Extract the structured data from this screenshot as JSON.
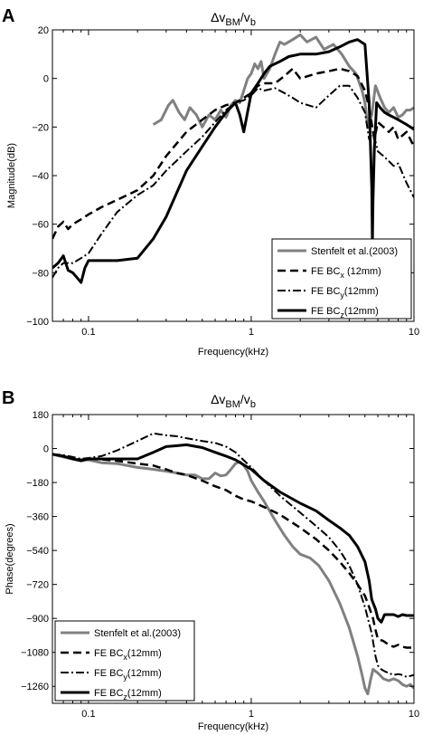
{
  "chart_data": [
    {
      "panel": "A",
      "type": "line",
      "title": "Δv_BM/v_b",
      "title_main": "Δv",
      "title_sub1": "BM",
      "title_slash": "/v",
      "title_sub2": "b",
      "xlabel": "Frequency(kHz)",
      "ylabel": "Magnitude(dB)",
      "xscale": "log",
      "xlim": [
        0.06,
        10
      ],
      "ylim": [
        -100,
        20
      ],
      "xticks": [
        0.1,
        1,
        10
      ],
      "xtick_labels": [
        "0.1",
        "1",
        "10"
      ],
      "yticks": [
        -100,
        -80,
        -60,
        -40,
        -20,
        0,
        20
      ],
      "ytick_labels": [
        "−100",
        "−80",
        "−60",
        "−40",
        "−20",
        "0",
        "20"
      ],
      "grid": false,
      "legend_position": "lower-right",
      "series": [
        {
          "name": "Stenfelt et al.(2003)",
          "style": "solid",
          "color": "#808080",
          "width": 3,
          "x": [
            0.25,
            0.28,
            0.31,
            0.33,
            0.36,
            0.39,
            0.42,
            0.46,
            0.5,
            0.55,
            0.6,
            0.65,
            0.7,
            0.75,
            0.8,
            0.85,
            0.9,
            0.95,
            1.0,
            1.05,
            1.1,
            1.15,
            1.2,
            1.3,
            1.4,
            1.5,
            1.6,
            1.8,
            2.0,
            2.2,
            2.5,
            2.8,
            3.2,
            3.6,
            4.0,
            4.4,
            4.8,
            5.0,
            5.2,
            5.5,
            5.8,
            6.2,
            6.6,
            7.0,
            7.5,
            8.0,
            8.5,
            9.0,
            9.5,
            10.0
          ],
          "y": [
            -19,
            -17,
            -11,
            -9,
            -14,
            -17,
            -12,
            -15,
            -20,
            -15,
            -17,
            -13,
            -16,
            -11,
            -9,
            -10,
            -5,
            0,
            2,
            6,
            4,
            7,
            0,
            4,
            10,
            15,
            14,
            16,
            18,
            15,
            17,
            12,
            14,
            10,
            5,
            2,
            -5,
            -10,
            -20,
            -15,
            -3,
            -8,
            -12,
            -14,
            -12,
            -16,
            -15,
            -13,
            -13,
            -12
          ]
        },
        {
          "name": "FE BC_x (12mm)",
          "label_prefix": "FE BC",
          "label_sub": "x",
          "label_suffix": " (12mm)",
          "style": "dashed",
          "color": "#000000",
          "width": 2.5,
          "x": [
            0.06,
            0.065,
            0.07,
            0.075,
            0.08,
            0.09,
            0.1,
            0.12,
            0.15,
            0.2,
            0.25,
            0.3,
            0.4,
            0.5,
            0.6,
            0.7,
            0.8,
            0.9,
            1.0,
            1.1,
            1.2,
            1.4,
            1.6,
            1.8,
            2.0,
            2.5,
            3.0,
            3.5,
            4.0,
            4.5,
            5.0,
            5.3,
            5.7,
            6.0,
            6.5,
            7.0,
            7.5,
            8.0,
            9.0,
            10.0
          ],
          "y": [
            -66,
            -61,
            -59,
            -62,
            -60,
            -58,
            -56,
            -53,
            -50,
            -46,
            -40,
            -32,
            -22,
            -17,
            -13,
            -11,
            -10,
            -8,
            -6,
            -3,
            -2,
            -2,
            1,
            4,
            0,
            2,
            3,
            4,
            3,
            1,
            -5,
            -12,
            -25,
            -18,
            -20,
            -22,
            -20,
            -25,
            -22,
            -28
          ]
        },
        {
          "name": "FE BC_y(12mm)",
          "label_prefix": "FE BC",
          "label_sub": "y",
          "label_suffix": "(12mm)",
          "style": "dashdot",
          "color": "#000000",
          "width": 2,
          "x": [
            0.06,
            0.065,
            0.07,
            0.08,
            0.09,
            0.1,
            0.12,
            0.15,
            0.2,
            0.25,
            0.3,
            0.4,
            0.5,
            0.6,
            0.7,
            0.8,
            0.9,
            1.0,
            1.1,
            1.2,
            1.4,
            1.6,
            1.8,
            2.0,
            2.5,
            3.0,
            3.5,
            4.0,
            4.5,
            5.0,
            5.3,
            5.6,
            6.0,
            6.5,
            7.0,
            7.5,
            8.0,
            9.0,
            10.0
          ],
          "y": [
            -82,
            -78,
            -76,
            -76,
            -74,
            -72,
            -64,
            -55,
            -48,
            -44,
            -38,
            -30,
            -24,
            -18,
            -13,
            -10,
            -9,
            -7,
            -4,
            -5,
            -4,
            -6,
            -8,
            -10,
            -12,
            -7,
            -3,
            -3,
            -8,
            -14,
            -25,
            -22,
            -30,
            -32,
            -34,
            -36,
            -35,
            -43,
            -49
          ]
        },
        {
          "name": "FE BC_z(12mm)",
          "label_prefix": "FE BC",
          "label_sub": "z",
          "label_suffix": "(12mm)",
          "style": "solid",
          "color": "#000000",
          "width": 3,
          "x": [
            0.06,
            0.065,
            0.07,
            0.075,
            0.08,
            0.085,
            0.09,
            0.095,
            0.1,
            0.12,
            0.15,
            0.2,
            0.25,
            0.3,
            0.4,
            0.5,
            0.6,
            0.7,
            0.8,
            0.85,
            0.9,
            1.0,
            1.1,
            1.2,
            1.3,
            1.5,
            1.7,
            2.0,
            2.5,
            3.0,
            3.5,
            4.0,
            4.5,
            5.0,
            5.3,
            5.5,
            5.55,
            5.6,
            5.7,
            5.9,
            6.2,
            6.6,
            7.0,
            7.5,
            8.0,
            8.5,
            9.0,
            9.5,
            10.0
          ],
          "y": [
            -78,
            -76,
            -73,
            -79,
            -80,
            -82,
            -84,
            -78,
            -75,
            -75,
            -75,
            -74,
            -66,
            -57,
            -38,
            -28,
            -20,
            -14,
            -10,
            -15,
            -22,
            -6,
            -2,
            2,
            5,
            7,
            9,
            10,
            10,
            11,
            13,
            15,
            16,
            14,
            -10,
            -45,
            -68,
            -50,
            -30,
            -10,
            -12,
            -14,
            -15,
            -16,
            -17,
            -18,
            -19,
            -20,
            -21
          ]
        }
      ]
    },
    {
      "panel": "B",
      "type": "line",
      "title": "Δv_BM/v_b",
      "title_main": "Δv",
      "title_sub1": "BM",
      "title_slash": "/v",
      "title_sub2": "b",
      "xlabel": "Frequency(kHz)",
      "ylabel": "Phase(degrees)",
      "xscale": "log",
      "xlim": [
        0.06,
        10
      ],
      "ylim": [
        -1350,
        180
      ],
      "xticks": [
        0.1,
        1,
        10
      ],
      "xtick_labels": [
        "0.1",
        "1",
        "10"
      ],
      "yticks": [
        180,
        0,
        -180,
        -360,
        -540,
        -720,
        -900,
        -1080,
        -1260
      ],
      "ytick_labels": [
        "180",
        "0",
        "−180",
        "−360",
        "−540",
        "−720",
        "−900",
        "−1080",
        "−1260"
      ],
      "grid": false,
      "legend_position": "lower-left",
      "series": [
        {
          "name": "Stenfelt et al.(2003)",
          "style": "solid",
          "color": "#808080",
          "width": 3,
          "x": [
            0.06,
            0.07,
            0.08,
            0.09,
            0.1,
            0.12,
            0.15,
            0.2,
            0.25,
            0.3,
            0.35,
            0.4,
            0.45,
            0.5,
            0.55,
            0.6,
            0.65,
            0.7,
            0.75,
            0.8,
            0.85,
            0.9,
            0.95,
            1.0,
            1.1,
            1.2,
            1.4,
            1.6,
            1.8,
            2.0,
            2.3,
            2.6,
            3.0,
            3.5,
            4.0,
            4.5,
            4.8,
            5.0,
            5.2,
            5.4,
            5.6,
            6.0,
            6.5,
            7.0,
            7.5,
            8.0,
            8.5,
            9.0,
            9.5,
            10.0
          ],
          "y": [
            -30,
            -45,
            -55,
            -60,
            -60,
            -75,
            -80,
            -100,
            -110,
            -120,
            -130,
            -140,
            -140,
            -160,
            -160,
            -130,
            -145,
            -140,
            -110,
            -80,
            -70,
            -90,
            -120,
            -170,
            -230,
            -280,
            -380,
            -460,
            -520,
            -560,
            -580,
            -620,
            -700,
            -820,
            -950,
            -1100,
            -1200,
            -1270,
            -1300,
            -1230,
            -1170,
            -1190,
            -1220,
            -1230,
            -1220,
            -1230,
            -1250,
            -1260,
            -1250,
            -1270
          ]
        },
        {
          "name": "FE BC_x(12mm)",
          "label_prefix": "FE BC",
          "label_sub": "x",
          "label_suffix": "(12mm)",
          "style": "dashed",
          "color": "#000000",
          "width": 2.5,
          "x": [
            0.06,
            0.07,
            0.08,
            0.09,
            0.1,
            0.12,
            0.15,
            0.2,
            0.25,
            0.3,
            0.35,
            0.4,
            0.5,
            0.6,
            0.7,
            0.8,
            0.9,
            1.0,
            1.2,
            1.5,
            2.0,
            2.5,
            3.0,
            3.5,
            4.0,
            4.5,
            5.0,
            5.3,
            5.6,
            5.8,
            6.0,
            6.5,
            7.0,
            7.5,
            8.0,
            8.5,
            9.0,
            10.0
          ],
          "y": [
            -30,
            -40,
            -55,
            -60,
            -55,
            -58,
            -65,
            -80,
            -90,
            -110,
            -130,
            -140,
            -170,
            -200,
            -220,
            -250,
            -270,
            -280,
            -310,
            -350,
            -420,
            -480,
            -540,
            -600,
            -660,
            -720,
            -780,
            -840,
            -900,
            -960,
            -1010,
            -1020,
            -1040,
            -1050,
            -1040,
            -1050,
            -1055,
            -1055
          ]
        },
        {
          "name": "FE BC_y(12mm)",
          "label_prefix": "FE BC",
          "label_sub": "y",
          "label_suffix": "(12mm)",
          "style": "dashdot",
          "color": "#000000",
          "width": 2,
          "x": [
            0.06,
            0.07,
            0.08,
            0.09,
            0.1,
            0.12,
            0.15,
            0.2,
            0.25,
            0.3,
            0.35,
            0.4,
            0.5,
            0.6,
            0.7,
            0.8,
            1.0,
            1.2,
            1.5,
            2.0,
            2.5,
            3.0,
            3.5,
            4.0,
            4.5,
            5.0,
            5.5,
            5.8,
            6.0,
            6.3,
            6.6,
            7.0,
            7.5,
            8.0,
            8.5,
            9.0,
            10.0
          ],
          "y": [
            -30,
            -35,
            -45,
            -55,
            -50,
            -40,
            -10,
            40,
            80,
            70,
            65,
            55,
            40,
            30,
            10,
            -20,
            -100,
            -170,
            -250,
            -340,
            -410,
            -470,
            -540,
            -620,
            -720,
            -840,
            -980,
            -1100,
            -1150,
            -1170,
            -1180,
            -1190,
            -1200,
            -1195,
            -1200,
            -1210,
            -1200
          ]
        },
        {
          "name": "FE BC_z(12mm)",
          "label_prefix": "FE BC",
          "label_sub": "z",
          "label_suffix": "(12mm)",
          "style": "solid",
          "color": "#000000",
          "width": 3,
          "x": [
            0.06,
            0.07,
            0.08,
            0.09,
            0.1,
            0.12,
            0.15,
            0.2,
            0.22,
            0.25,
            0.3,
            0.35,
            0.4,
            0.5,
            0.6,
            0.7,
            0.8,
            1.0,
            1.2,
            1.5,
            2.0,
            2.5,
            3.0,
            3.5,
            4.0,
            4.5,
            5.0,
            5.3,
            5.5,
            5.8,
            6.0,
            6.3,
            6.6,
            7.0,
            7.5,
            8.0,
            8.5,
            9.0,
            10.0
          ],
          "y": [
            -30,
            -40,
            -55,
            -65,
            -55,
            -55,
            -55,
            -55,
            -40,
            -20,
            10,
            15,
            20,
            5,
            -20,
            -40,
            -60,
            -110,
            -170,
            -230,
            -290,
            -330,
            -380,
            -420,
            -460,
            -520,
            -600,
            -700,
            -800,
            -850,
            -900,
            -920,
            -880,
            -880,
            -880,
            -890,
            -880,
            -885,
            -885
          ]
        }
      ]
    }
  ]
}
